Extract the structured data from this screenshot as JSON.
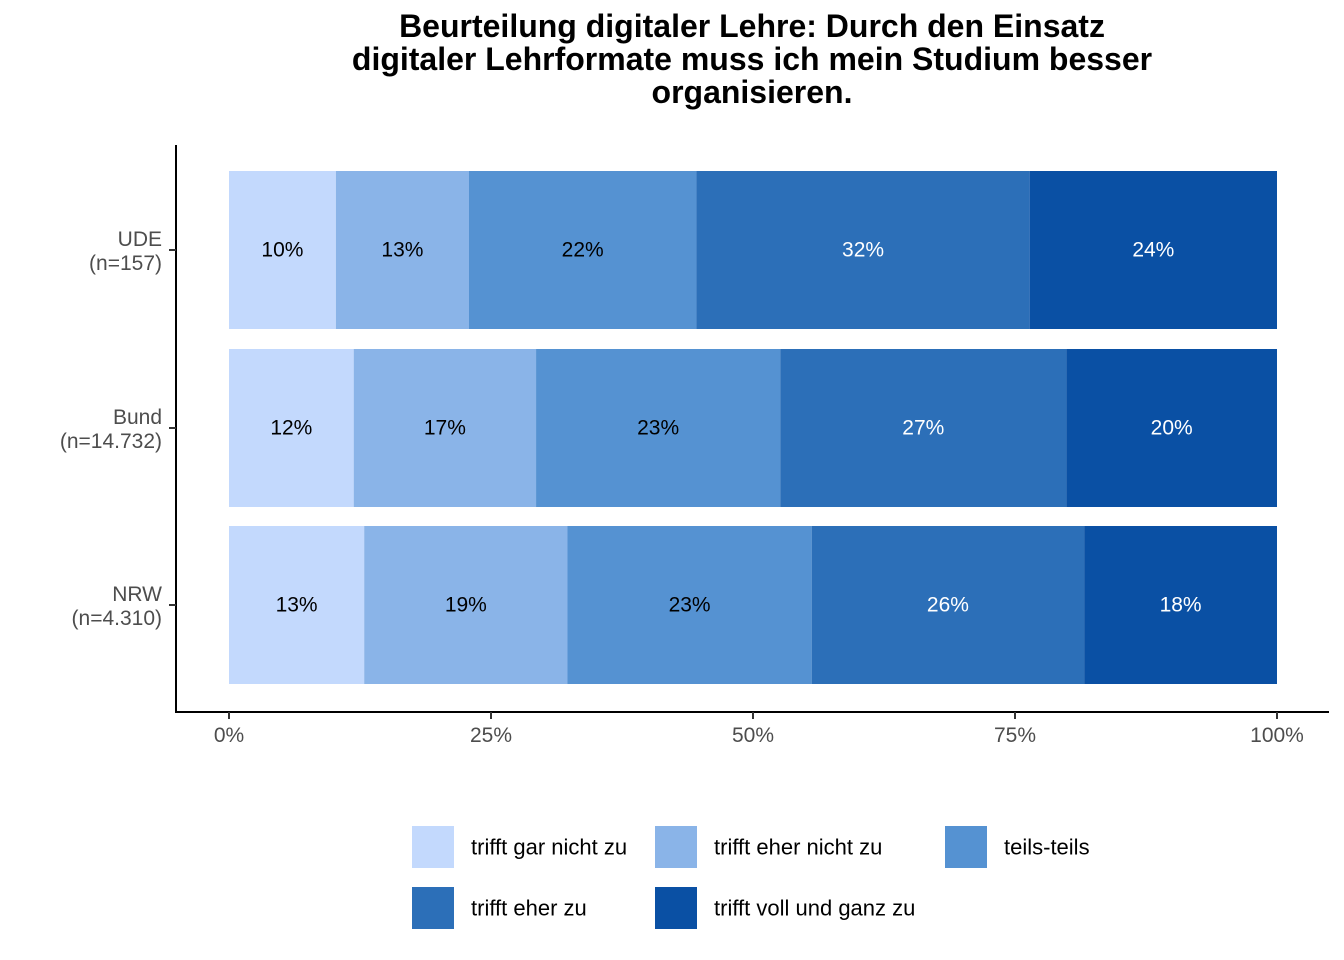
{
  "chart_data": {
    "type": "bar",
    "orientation": "horizontal-stacked-percent",
    "title": "Beurteilung digitaler Lehre: Durch den Einsatz digitaler Lehrformate muss ich mein Studium besser organisieren.",
    "title_lines": [
      "Beurteilung digitaler Lehre: Durch den Einsatz",
      "digitaler Lehrformate muss ich mein Studium besser",
      "organisieren."
    ],
    "categories": [
      {
        "name": "UDE",
        "n": "(n=157)"
      },
      {
        "name": "Bund",
        "n": "(n=14.732)"
      },
      {
        "name": "NRW",
        "n": "(n=4.310)"
      }
    ],
    "series": [
      {
        "name": "trifft gar nicht zu",
        "color": "#c3d9fd",
        "text_color": "#000000",
        "values": [
          10.2,
          11.9,
          12.9
        ],
        "labels": [
          "10%",
          "12%",
          "13%"
        ]
      },
      {
        "name": "trifft eher nicht zu",
        "color": "#8ab4e8",
        "text_color": "#000000",
        "values": [
          12.7,
          17.4,
          19.4
        ],
        "labels": [
          "13%",
          "17%",
          "19%"
        ]
      },
      {
        "name": "teils-teils",
        "color": "#5592d2",
        "text_color": "#000000",
        "values": [
          21.7,
          23.3,
          23.3
        ],
        "labels": [
          "22%",
          "23%",
          "23%"
        ]
      },
      {
        "name": "trifft eher zu",
        "color": "#2c6fb8",
        "text_color": "#ffffff",
        "values": [
          31.8,
          27.3,
          26.0
        ],
        "labels": [
          "32%",
          "27%",
          "26%"
        ]
      },
      {
        "name": "trifft voll und ganz zu",
        "color": "#0a50a4",
        "text_color": "#ffffff",
        "values": [
          23.6,
          20.1,
          18.4
        ],
        "labels": [
          "24%",
          "20%",
          "18%"
        ]
      }
    ],
    "x_ticks": [
      "0%",
      "25%",
      "50%",
      "75%",
      "100%"
    ],
    "xlim": [
      0,
      100
    ],
    "xlabel": "",
    "ylabel": "",
    "grid": false,
    "legend_position": "bottom"
  }
}
